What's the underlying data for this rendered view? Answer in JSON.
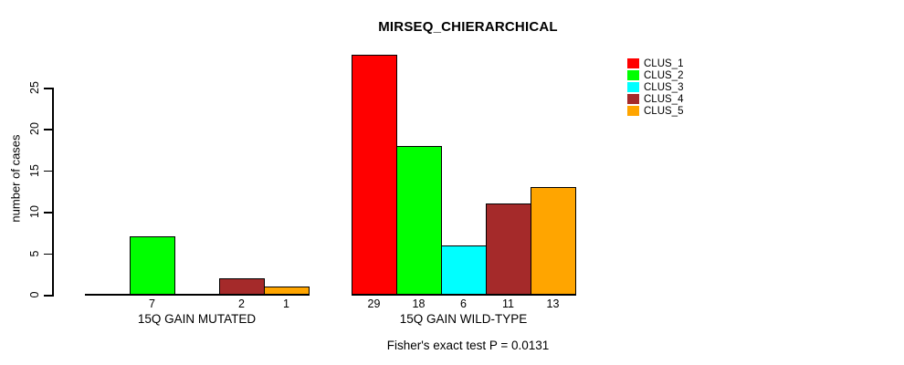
{
  "title": "MIRSEQ_CHIERARCHICAL",
  "chart_data": {
    "type": "bar",
    "title": "MIRSEQ_CHIERARCHICAL",
    "xlabel": "",
    "ylabel": "number of cases",
    "yticks": [
      0,
      5,
      10,
      15,
      20,
      25
    ],
    "ylim": [
      0,
      29
    ],
    "grid": false,
    "legend_position": "top-right",
    "categories": [
      "15Q GAIN MUTATED",
      "15Q GAIN WILD-TYPE"
    ],
    "series": [
      {
        "name": "CLUS_1",
        "color": "#FF0000",
        "values": [
          0,
          29
        ]
      },
      {
        "name": "CLUS_2",
        "color": "#00FF00",
        "values": [
          7,
          18
        ]
      },
      {
        "name": "CLUS_3",
        "color": "#00FFFF",
        "values": [
          0,
          6
        ]
      },
      {
        "name": "CLUS_4",
        "color": "#A52A2A",
        "values": [
          2,
          11
        ]
      },
      {
        "name": "CLUS_5",
        "color": "#FFA500",
        "values": [
          1,
          13
        ]
      }
    ],
    "bar_value_labels": [
      [
        "",
        "7",
        "",
        "2",
        "1"
      ],
      [
        "29",
        "18",
        "6",
        "11",
        "13"
      ]
    ],
    "annotation": "Fisher's exact test P = 0.0131"
  }
}
